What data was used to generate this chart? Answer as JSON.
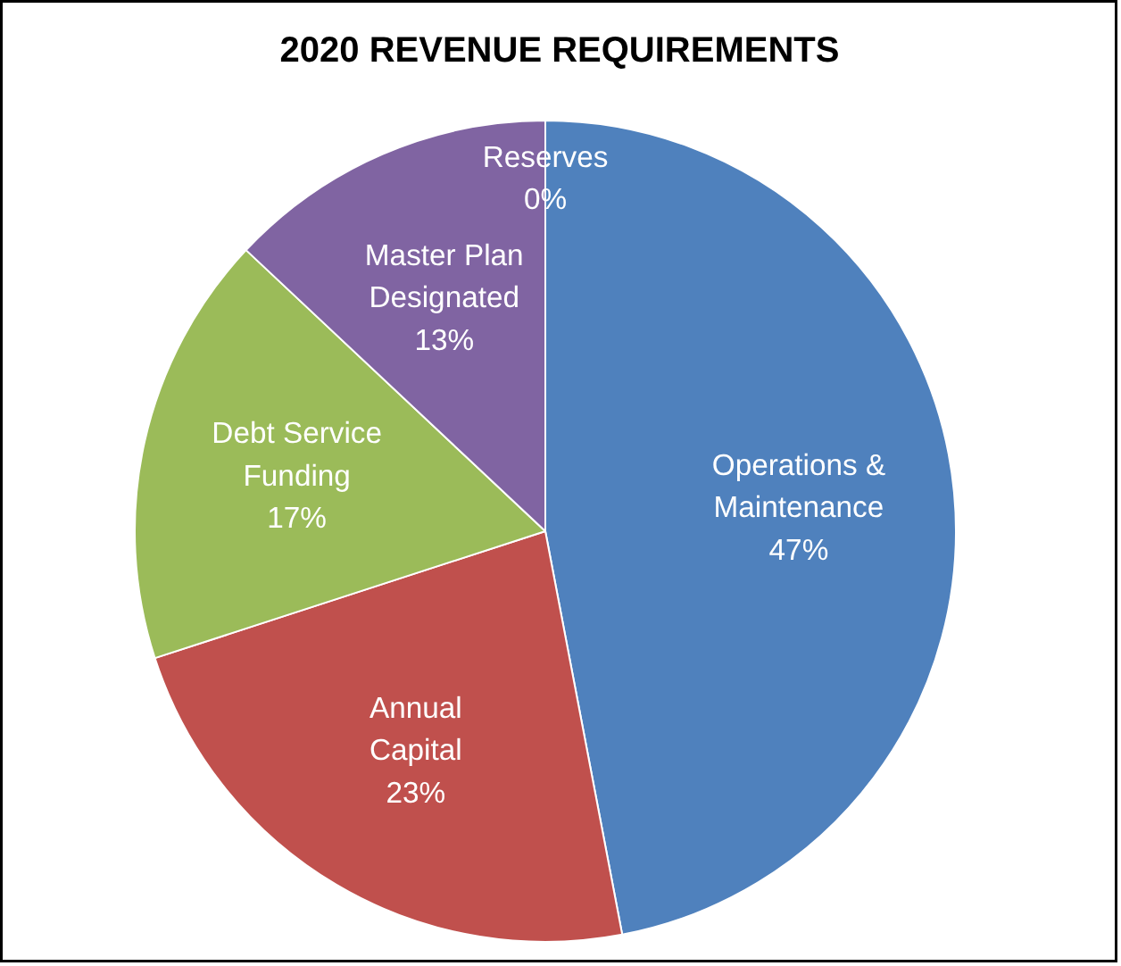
{
  "chart_data": {
    "type": "pie",
    "title": "2020 REVENUE REQUIREMENTS",
    "categories": [
      "Operations &\nMaintenance",
      "Annual\nCapital",
      "Debt Service\nFunding",
      "Master Plan\nDesignated",
      "Reserves"
    ],
    "values": [
      47,
      23,
      17,
      13,
      0
    ],
    "colors": [
      "#4f81bd",
      "#c0504d",
      "#9bbb59",
      "#8064a2",
      "#4bacc6"
    ],
    "value_labels": [
      "47%",
      "23%",
      "17%",
      "13%",
      "0%"
    ],
    "legend": false
  }
}
